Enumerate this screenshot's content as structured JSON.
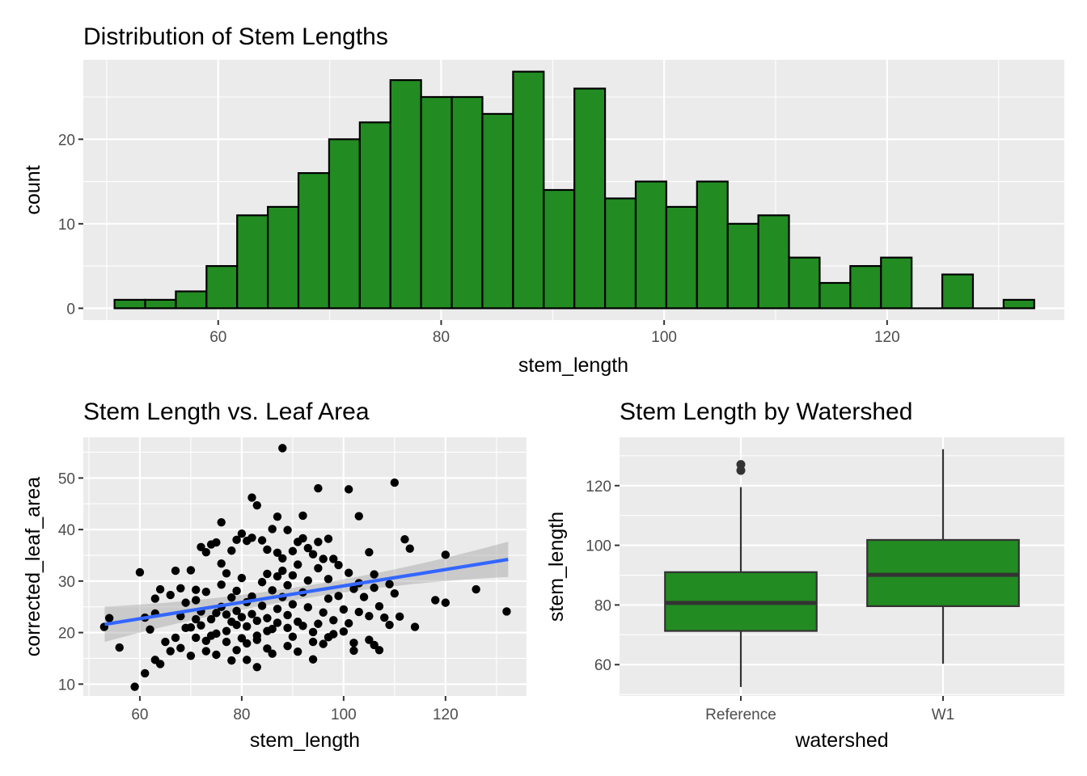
{
  "colors": {
    "panel": "#ebebeb",
    "fill_green": "#228b22",
    "outline": "#000000",
    "trend_line": "#3366ff",
    "ribbon": "#999999"
  },
  "chart_data": [
    {
      "type": "bar",
      "subtype": "histogram",
      "title": "Distribution of Stem Lengths",
      "xlabel": "stem_length",
      "ylabel": "count",
      "xlim": [
        47.9,
        135.9
      ],
      "ylim": [
        -1.4,
        29.4
      ],
      "x_ticks": [
        60,
        80,
        100,
        120
      ],
      "y_ticks": [
        0,
        10,
        20
      ],
      "bin_edges": [
        50.7,
        53.45,
        56.2,
        58.95,
        61.7,
        64.45,
        67.2,
        69.95,
        72.7,
        75.45,
        78.2,
        80.95,
        83.7,
        86.45,
        89.2,
        91.95,
        94.7,
        97.45,
        100.2,
        102.95,
        105.7,
        108.45,
        111.2,
        113.95,
        116.7,
        119.45,
        122.2,
        124.95,
        127.7,
        130.45,
        133.2
      ],
      "values": [
        1,
        1,
        2,
        5,
        11,
        12,
        16,
        20,
        22,
        27,
        25,
        25,
        23,
        28,
        14,
        26,
        13,
        15,
        12,
        15,
        10,
        11,
        6,
        3,
        5,
        6,
        0,
        4,
        0,
        1
      ]
    },
    {
      "type": "scatter",
      "title": "Stem Length vs. Leaf Area",
      "xlabel": "stem_length",
      "ylabel": "corrected_leaf_area",
      "xlim": [
        48.9,
        135.9
      ],
      "ylim": [
        7.7,
        57.9
      ],
      "x_ticks": [
        60,
        80,
        100,
        120
      ],
      "y_ticks": [
        10,
        20,
        30,
        40,
        50
      ],
      "trend": {
        "x": [
          53.1,
          132.3
        ],
        "y": [
          21.6,
          34.2
        ],
        "ci_lower": [
          20.2,
          31.2
        ],
        "ci_upper": [
          23.0,
          37.3
        ]
      },
      "points": [
        [
          88,
          55.8
        ],
        [
          82,
          46.2
        ],
        [
          95,
          48.0
        ],
        [
          101,
          47.8
        ],
        [
          110,
          49.1
        ],
        [
          83,
          44.7
        ],
        [
          76,
          41.4
        ],
        [
          87,
          42.5
        ],
        [
          92,
          42.7
        ],
        [
          103,
          42.6
        ],
        [
          89,
          39.9
        ],
        [
          80,
          39.2
        ],
        [
          60,
          31.7
        ],
        [
          56,
          17.1
        ],
        [
          61,
          12.1
        ],
        [
          59,
          9.5
        ],
        [
          54,
          22.8
        ],
        [
          53,
          21.1
        ],
        [
          63,
          23.7
        ],
        [
          63,
          26.6
        ],
        [
          64,
          28.4
        ],
        [
          66,
          27.3
        ],
        [
          67,
          32.0
        ],
        [
          68,
          28.6
        ],
        [
          70,
          32.1
        ],
        [
          71,
          28.3
        ],
        [
          72,
          36.6
        ],
        [
          73,
          35.6
        ],
        [
          74,
          37.1
        ],
        [
          75,
          37.5
        ],
        [
          76,
          33.4
        ],
        [
          77,
          31.5
        ],
        [
          78,
          35.9
        ],
        [
          79,
          38.0
        ],
        [
          81,
          37.8
        ],
        [
          82,
          38.4
        ],
        [
          84,
          37.9
        ],
        [
          85,
          36.1
        ],
        [
          86,
          40.1
        ],
        [
          87,
          35.5
        ],
        [
          88,
          34.4
        ],
        [
          90,
          35.8
        ],
        [
          91,
          37.6
        ],
        [
          92,
          38.3
        ],
        [
          93,
          36.4
        ],
        [
          94,
          35.2
        ],
        [
          95,
          37.6
        ],
        [
          96,
          34.3
        ],
        [
          97,
          38.2
        ],
        [
          98,
          34.3
        ],
        [
          105,
          35.6
        ],
        [
          112,
          38.1
        ],
        [
          113,
          36.3
        ],
        [
          120,
          35.1
        ],
        [
          118,
          26.3
        ],
        [
          120,
          25.8
        ],
        [
          126,
          28.4
        ],
        [
          132,
          24.1
        ],
        [
          114,
          21.1
        ],
        [
          111,
          23.1
        ],
        [
          109,
          21.5
        ],
        [
          107,
          16.6
        ],
        [
          106,
          17.6
        ],
        [
          105,
          18.6
        ],
        [
          102,
          16.5
        ],
        [
          97,
          19.1
        ],
        [
          95,
          21.7
        ],
        [
          94,
          14.8
        ],
        [
          91,
          16.3
        ],
        [
          89,
          17.4
        ],
        [
          86,
          15.9
        ],
        [
          83,
          13.3
        ],
        [
          81,
          14.7
        ],
        [
          78,
          14.6
        ],
        [
          75,
          15.7
        ],
        [
          73,
          16.4
        ],
        [
          70,
          15.5
        ],
        [
          68,
          17.0
        ],
        [
          66,
          16.4
        ],
        [
          64,
          13.9
        ],
        [
          63,
          14.7
        ],
        [
          61,
          22.9
        ],
        [
          62,
          20.6
        ],
        [
          65,
          18.2
        ],
        [
          67,
          19.0
        ],
        [
          69,
          20.9
        ],
        [
          71,
          22.6
        ],
        [
          72,
          21.4
        ],
        [
          74,
          19.4
        ],
        [
          75,
          23.8
        ],
        [
          77,
          20.3
        ],
        [
          78,
          22.1
        ],
        [
          79,
          24.2
        ],
        [
          80,
          18.9
        ],
        [
          81,
          21.2
        ],
        [
          82,
          23.6
        ],
        [
          83,
          19.4
        ],
        [
          84,
          25.2
        ],
        [
          85,
          22.8
        ],
        [
          86,
          20.7
        ],
        [
          87,
          24.6
        ],
        [
          88,
          26.9
        ],
        [
          89,
          23.4
        ],
        [
          90,
          25.5
        ],
        [
          91,
          22.1
        ],
        [
          92,
          27.8
        ],
        [
          93,
          24.9
        ],
        [
          94,
          20.1
        ],
        [
          96,
          23.9
        ],
        [
          97,
          26.6
        ],
        [
          98,
          22.4
        ],
        [
          99,
          27.1
        ],
        [
          100,
          24.5
        ],
        [
          101,
          21.8
        ],
        [
          102,
          28.5
        ],
        [
          103,
          24.0
        ],
        [
          104,
          26.9
        ],
        [
          105,
          23.2
        ],
        [
          106,
          28.7
        ],
        [
          107,
          25.1
        ],
        [
          108,
          22.9
        ],
        [
          109,
          29.4
        ],
        [
          110,
          27.6
        ],
        [
          71,
          26.3
        ],
        [
          73,
          27.9
        ],
        [
          76,
          29.3
        ],
        [
          79,
          28.1
        ],
        [
          80,
          30.6
        ],
        [
          82,
          27.0
        ],
        [
          84,
          29.8
        ],
        [
          85,
          31.4
        ],
        [
          86,
          28.2
        ],
        [
          87,
          30.9
        ],
        [
          88,
          32.0
        ],
        [
          89,
          29.2
        ],
        [
          90,
          31.1
        ],
        [
          91,
          33.2
        ],
        [
          93,
          30.1
        ],
        [
          95,
          32.5
        ],
        [
          97,
          30.4
        ],
        [
          99,
          33.1
        ],
        [
          101,
          31.6
        ],
        [
          103,
          29.6
        ],
        [
          106,
          31.3
        ],
        [
          68,
          23.2
        ],
        [
          69,
          25.8
        ],
        [
          70,
          21.0
        ],
        [
          72,
          24.1
        ],
        [
          74,
          22.6
        ],
        [
          76,
          25.0
        ],
        [
          77,
          23.5
        ],
        [
          78,
          26.8
        ],
        [
          79,
          21.5
        ],
        [
          80,
          23.0
        ],
        [
          81,
          25.9
        ],
        [
          83,
          22.3
        ],
        [
          85,
          20.3
        ],
        [
          87,
          21.9
        ],
        [
          89,
          20.9
        ],
        [
          90,
          19.2
        ],
        [
          92,
          21.3
        ],
        [
          94,
          18.2
        ],
        [
          96,
          17.8
        ],
        [
          98,
          19.7
        ],
        [
          100,
          20.2
        ],
        [
          102,
          18.0
        ],
        [
          77,
          18.2
        ],
        [
          79,
          16.6
        ],
        [
          81,
          17.9
        ],
        [
          83,
          18.6
        ],
        [
          85,
          16.9
        ],
        [
          75,
          19.8
        ],
        [
          73,
          18.4
        ],
        [
          71,
          19.0
        ]
      ]
    },
    {
      "type": "boxplot",
      "title": "Stem Length by Watershed",
      "xlabel": "watershed",
      "ylabel": "stem_length",
      "ylim": [
        49.5,
        136.2
      ],
      "y_ticks": [
        60,
        80,
        100,
        120
      ],
      "categories": [
        "Reference",
        "W1"
      ],
      "boxes": [
        {
          "category": "Reference",
          "min": 52.5,
          "q1": 71.3,
          "median": 80.7,
          "q3": 91.0,
          "max": 119.5,
          "outliers": [
            125.1,
            127.1
          ]
        },
        {
          "category": "W1",
          "min": 60.3,
          "q1": 79.6,
          "median": 90.1,
          "q3": 101.8,
          "max": 132.2,
          "outliers": []
        }
      ]
    }
  ]
}
